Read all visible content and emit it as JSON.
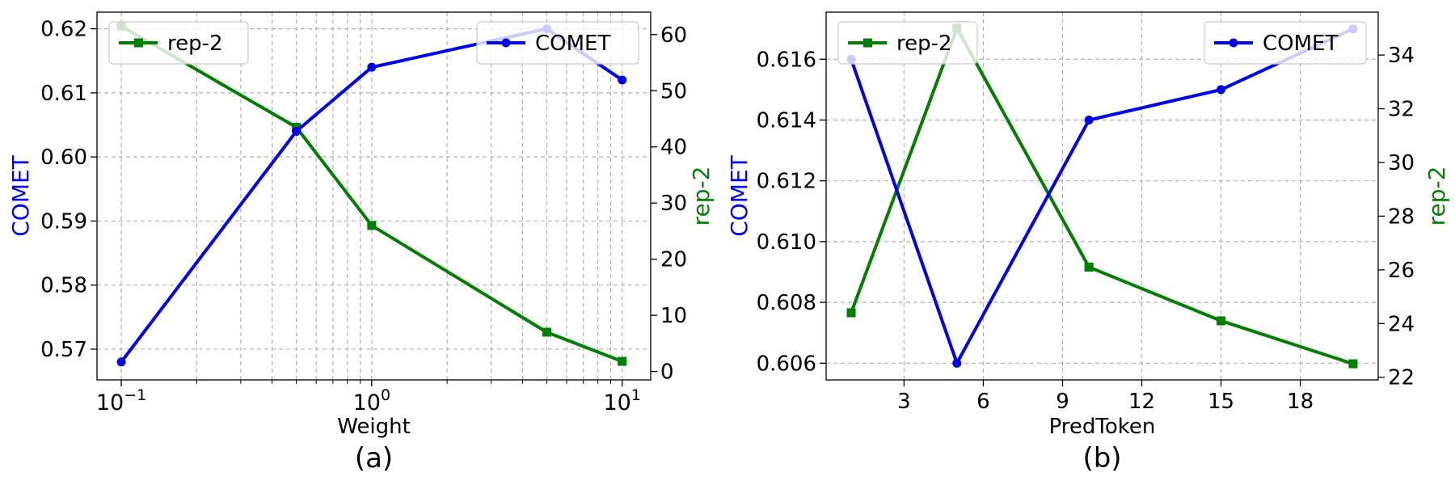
{
  "colors": {
    "comet": "#0000ee",
    "rep2": "#007f00",
    "grid": "#b0b0b0"
  },
  "chart_data": [
    {
      "type": "line",
      "panel_label": "(a)",
      "xlabel": "Weight",
      "ylabel_left": "COMET",
      "ylabel_right": "rep-2",
      "xscale": "log",
      "x": [
        0.1,
        0.5,
        1,
        5,
        10
      ],
      "xlim": [
        0.08,
        13
      ],
      "xticks": [
        {
          "value": 0.1,
          "base": "10",
          "exp": "−1"
        },
        {
          "value": 1,
          "base": "10",
          "exp": "0"
        },
        {
          "value": 10,
          "base": "10",
          "exp": "1"
        }
      ],
      "ylim_left": [
        0.5652,
        0.6226
      ],
      "yticks_left": [
        "0.57",
        "0.58",
        "0.59",
        "0.60",
        "0.61",
        "0.62"
      ],
      "ylim_right": [
        -1.5,
        64
      ],
      "yticks_right": [
        "0",
        "10",
        "20",
        "30",
        "40",
        "50",
        "60"
      ],
      "grid": true,
      "series": [
        {
          "name": "COMET",
          "axis": "left",
          "marker": "circle",
          "values": [
            0.568,
            0.604,
            0.614,
            0.62,
            0.612
          ]
        },
        {
          "name": "rep-2",
          "axis": "right",
          "marker": "square",
          "values": [
            61.5,
            43.5,
            26,
            7,
            1.8
          ]
        }
      ],
      "legend": {
        "rep2": "rep-2",
        "comet": "COMET",
        "rep2_loc": "top-left",
        "comet_loc": "top-right"
      }
    },
    {
      "type": "line",
      "panel_label": "(b)",
      "xlabel": "PredToken",
      "ylabel_left": "COMET",
      "ylabel_right": "rep-2",
      "xscale": "linear",
      "x": [
        1,
        5,
        10,
        15,
        20
      ],
      "xlim": [
        0.05,
        20.95
      ],
      "xticks": [
        {
          "value": 3,
          "label": "3"
        },
        {
          "value": 6,
          "label": "6"
        },
        {
          "value": 9,
          "label": "9"
        },
        {
          "value": 12,
          "label": "12"
        },
        {
          "value": 15,
          "label": "15"
        },
        {
          "value": 18,
          "label": "18"
        }
      ],
      "ylim_left": [
        0.60545,
        0.61755
      ],
      "yticks_left": [
        "0.606",
        "0.608",
        "0.610",
        "0.612",
        "0.614",
        "0.616"
      ],
      "ylim_right": [
        21.9,
        35.6
      ],
      "yticks_right": [
        "22",
        "24",
        "26",
        "28",
        "30",
        "32",
        "34"
      ],
      "grid": true,
      "series": [
        {
          "name": "COMET",
          "axis": "left",
          "marker": "circle",
          "values": [
            0.616,
            0.606,
            0.614,
            0.615,
            0.617
          ]
        },
        {
          "name": "rep-2",
          "axis": "right",
          "marker": "square",
          "values": [
            24.4,
            35.0,
            26.1,
            24.1,
            22.5
          ]
        }
      ],
      "legend": {
        "rep2": "rep-2",
        "comet": "COMET",
        "rep2_loc": "top-left",
        "comet_loc": "top-right"
      }
    }
  ]
}
